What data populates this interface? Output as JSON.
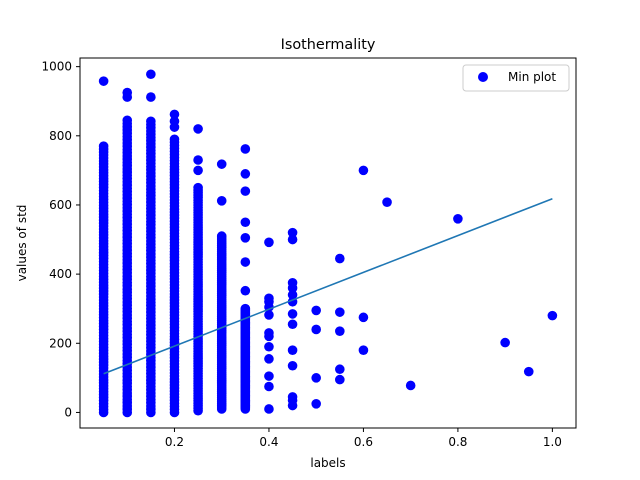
{
  "chart_data": {
    "type": "scatter",
    "title": "Isothermality",
    "xlabel": "labels",
    "ylabel": "values of std",
    "xlim": [
      0.0,
      1.05
    ],
    "ylim": [
      -45,
      1025
    ],
    "xticks": [
      0.2,
      0.4,
      0.6,
      0.8,
      1.0
    ],
    "xtick_labels": [
      "0.2",
      "0.4",
      "0.6",
      "0.8",
      "1.0"
    ],
    "yticks": [
      0,
      200,
      400,
      600,
      800,
      1000
    ],
    "ytick_labels": [
      "0",
      "200",
      "400",
      "600",
      "800",
      "1000"
    ],
    "legend": {
      "position": "top-right",
      "entries": [
        "Min plot"
      ]
    },
    "grid": false,
    "colors": {
      "points": "#0000ff",
      "fit_line": "#1f77b4"
    },
    "series": [
      {
        "name": "Min plot",
        "kind": "scatter",
        "columns": [
          {
            "x": 0.05,
            "min": 0,
            "max": 770,
            "extra": [
              958
            ]
          },
          {
            "x": 0.1,
            "min": 0,
            "max": 845,
            "extra": [
              912,
              925
            ]
          },
          {
            "x": 0.15,
            "min": 0,
            "max": 842,
            "extra": [
              912,
              978
            ]
          },
          {
            "x": 0.2,
            "min": 0,
            "max": 790,
            "extra": [
              825,
              842,
              862
            ]
          },
          {
            "x": 0.25,
            "min": 5,
            "max": 650,
            "extra": [
              700,
              730,
              820
            ]
          },
          {
            "x": 0.3,
            "min": 10,
            "max": 510,
            "extra": [
              612,
              718
            ]
          },
          {
            "x": 0.35,
            "min": 10,
            "max": 300,
            "extra": [
              352,
              435,
              505,
              550,
              640,
              690,
              762
            ]
          }
        ],
        "points": [
          [
            0.4,
            10
          ],
          [
            0.4,
            75
          ],
          [
            0.4,
            105
          ],
          [
            0.4,
            155
          ],
          [
            0.4,
            190
          ],
          [
            0.4,
            220
          ],
          [
            0.4,
            230
          ],
          [
            0.4,
            282
          ],
          [
            0.4,
            305
          ],
          [
            0.4,
            320
          ],
          [
            0.4,
            330
          ],
          [
            0.4,
            492
          ],
          [
            0.45,
            20
          ],
          [
            0.45,
            35
          ],
          [
            0.45,
            45
          ],
          [
            0.45,
            135
          ],
          [
            0.45,
            180
          ],
          [
            0.45,
            255
          ],
          [
            0.45,
            285
          ],
          [
            0.45,
            320
          ],
          [
            0.45,
            340
          ],
          [
            0.45,
            360
          ],
          [
            0.45,
            375
          ],
          [
            0.45,
            500
          ],
          [
            0.45,
            520
          ],
          [
            0.5,
            25
          ],
          [
            0.5,
            100
          ],
          [
            0.5,
            240
          ],
          [
            0.5,
            295
          ],
          [
            0.55,
            95
          ],
          [
            0.55,
            125
          ],
          [
            0.55,
            235
          ],
          [
            0.55,
            290
          ],
          [
            0.55,
            445
          ],
          [
            0.6,
            180
          ],
          [
            0.6,
            275
          ],
          [
            0.6,
            700
          ],
          [
            0.65,
            608
          ],
          [
            0.7,
            78
          ],
          [
            0.8,
            560
          ],
          [
            0.9,
            202
          ],
          [
            0.95,
            118
          ],
          [
            1.0,
            280
          ]
        ]
      },
      {
        "kind": "line",
        "x": [
          0.05,
          1.0
        ],
        "y": [
          112,
          618
        ]
      }
    ]
  }
}
